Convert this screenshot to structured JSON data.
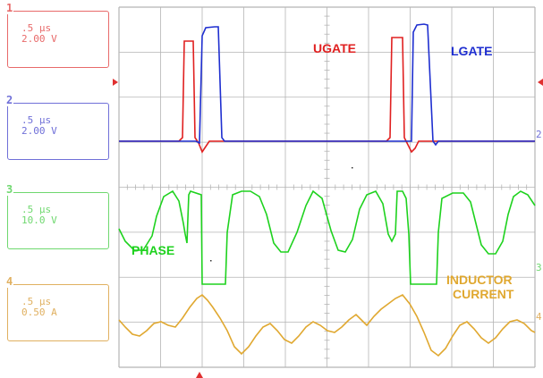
{
  "channels": [
    {
      "num": "1",
      "time": ".5 µs",
      "scale": "2.00 V",
      "color": "#e86a6a"
    },
    {
      "num": "2",
      "time": ".5 µs",
      "scale": "2.00 V",
      "color": "#6f6fd8"
    },
    {
      "num": "3",
      "time": ".5 µs",
      "scale": "10.0 V",
      "color": "#6fd86f"
    },
    {
      "num": "4",
      "time": ".5 µs",
      "scale": "0.50 A",
      "color": "#e0b060"
    }
  ],
  "labels": {
    "ugate": "UGATE",
    "lgate": "LGATE",
    "phase": "PHASE",
    "inductor_line1": "INDUCTOR",
    "inductor_line2": "CURRENT"
  },
  "right_markers": [
    "2",
    "3",
    "4"
  ],
  "colors": {
    "ugate": "#e02020",
    "lgate": "#1f2fd0",
    "phase": "#1ed21e",
    "inductor": "#e0a830",
    "grid": "#b4b4b4",
    "arrow": "#e03030"
  }
}
